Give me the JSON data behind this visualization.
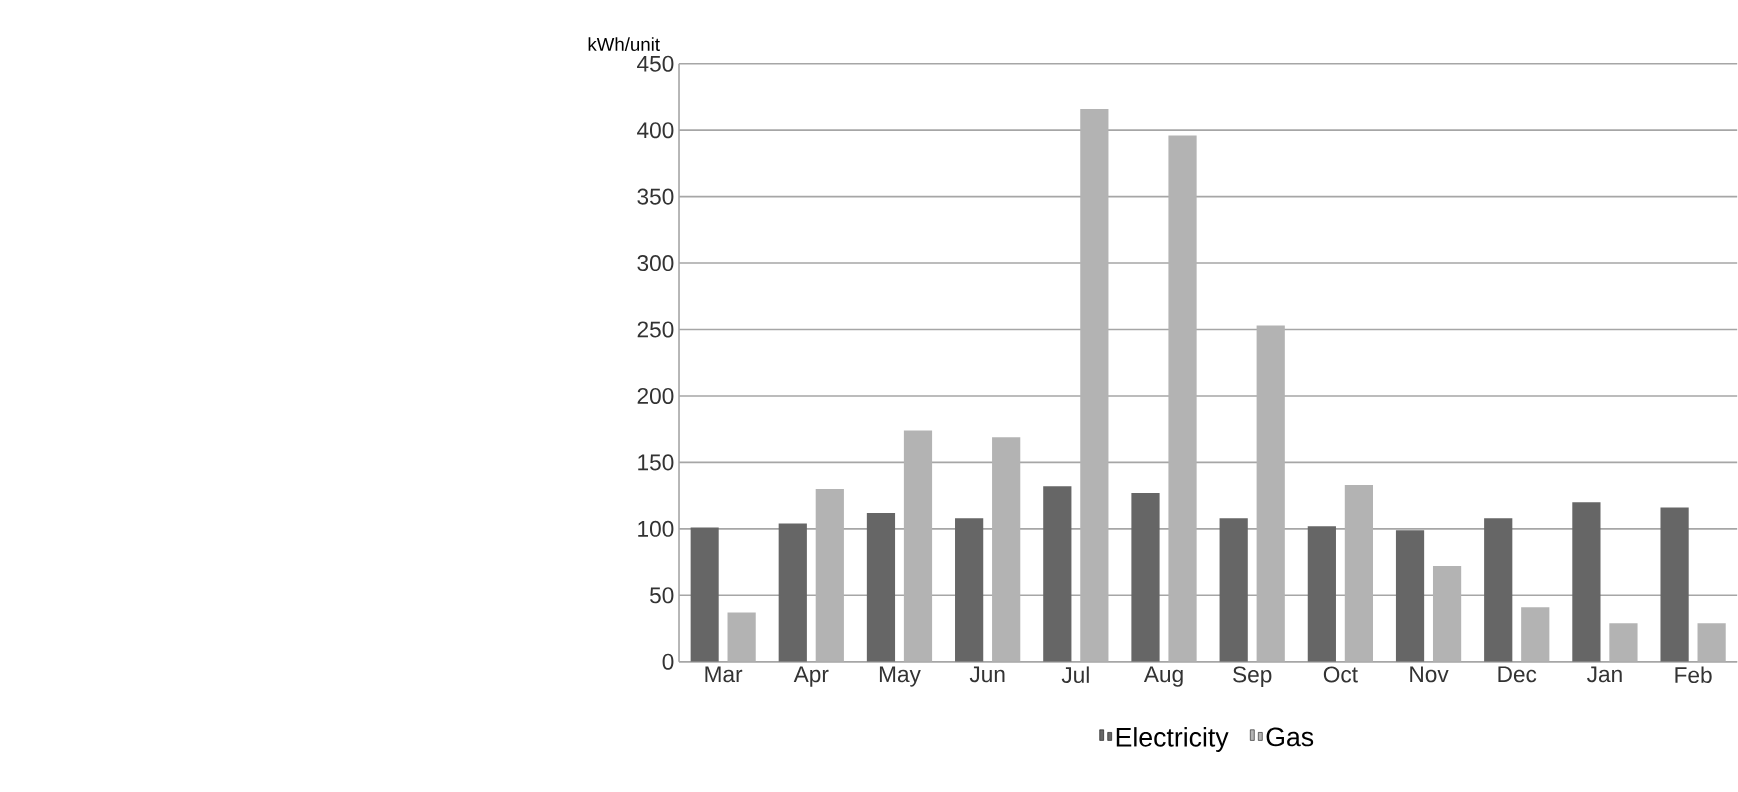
{
  "chart_data": {
    "type": "bar",
    "ylabel": "kWh/unit",
    "categories": [
      "Mar",
      "Apr",
      "May",
      "Jun",
      "Jul",
      "Aug",
      "Sep",
      "Oct",
      "Nov",
      "Dec",
      "Jan",
      "Feb"
    ],
    "series": [
      {
        "name": "Electricity",
        "color": "#666666",
        "values": [
          101,
          104,
          112,
          108,
          132,
          127,
          108,
          102,
          99,
          108,
          120,
          116
        ]
      },
      {
        "name": "Gas",
        "color": "#b3b3b3",
        "values": [
          37,
          130,
          174,
          169,
          416,
          396,
          253,
          133,
          72,
          41,
          29,
          29
        ]
      }
    ],
    "ylim": [
      0,
      450
    ],
    "yticks": [
      0,
      50,
      100,
      150,
      200,
      250,
      300,
      350,
      400,
      450
    ],
    "grid": "y",
    "legend": "bottom"
  }
}
